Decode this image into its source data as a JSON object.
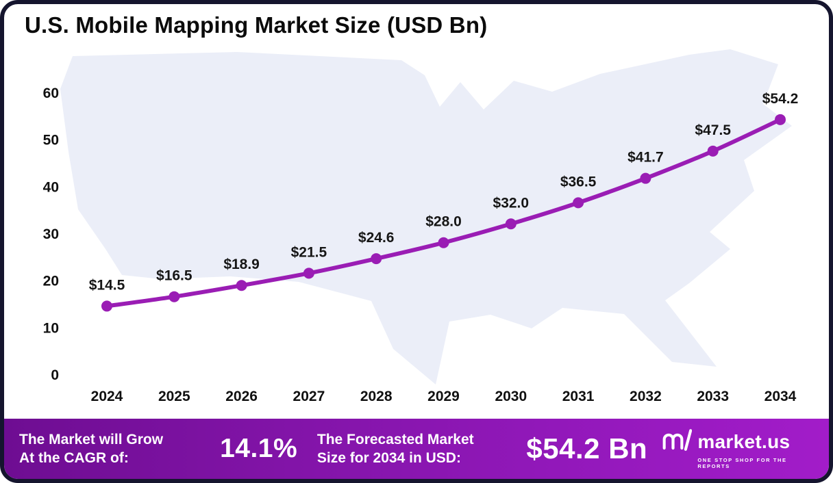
{
  "title": "U.S. Mobile Mapping Market Size (USD Bn)",
  "chart_data": {
    "type": "line",
    "title": "U.S. Mobile Mapping Market Size (USD Bn)",
    "x": [
      2024,
      2025,
      2026,
      2027,
      2028,
      2029,
      2030,
      2031,
      2032,
      2033,
      2034
    ],
    "series": [
      {
        "name": "U.S. Mobile Mapping Market Size (USD Bn)",
        "values": [
          14.5,
          16.5,
          18.9,
          21.5,
          24.6,
          28.0,
          32.0,
          36.5,
          41.7,
          47.5,
          54.2
        ]
      }
    ],
    "data_labels": [
      "$14.5",
      "$16.5",
      "$18.9",
      "$21.5",
      "$24.6",
      "$28.0",
      "$32.0",
      "$36.5",
      "$41.7",
      "$47.5",
      "$54.2"
    ],
    "xlabel": "",
    "ylabel": "",
    "ylim": [
      0,
      60
    ],
    "yticks": [
      0,
      10,
      20,
      30,
      40,
      50,
      60
    ],
    "grid": false,
    "legend": "none",
    "line_color": "#9a1db4",
    "marker_color": "#9a1db4",
    "background": "usa-map-silhouette"
  },
  "footer": {
    "cagr_label_line1": "The Market will Grow",
    "cagr_label_line2": "At the CAGR of:",
    "cagr_value": "14.1%",
    "forecast_label_line1": "The Forecasted Market",
    "forecast_label_line2": "Size for 2034 in USD:",
    "forecast_value": "$54.2 Bn",
    "brand": "market.us",
    "brand_tagline": "ONE STOP SHOP FOR THE REPORTS"
  },
  "colors": {
    "accent_purple": "#9a1db4",
    "footer_gradient_start": "#6e0d92",
    "footer_gradient_end": "#a21cc9",
    "map_fill": "#ebeef8",
    "frame_border": "#15152e"
  }
}
